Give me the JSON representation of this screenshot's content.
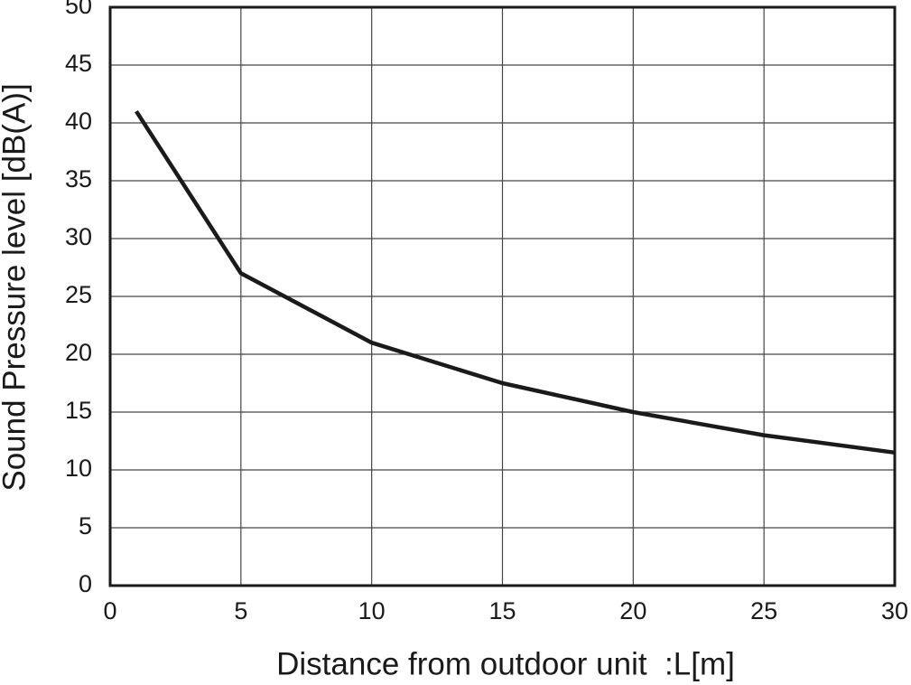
{
  "chart_data": {
    "type": "line",
    "x_label": "Distance from outdoor unit  :L[m]",
    "y_label": "Sound Pressure level [dB(A)]",
    "x": [
      1,
      5,
      10,
      15,
      20,
      25,
      30
    ],
    "series": [
      {
        "color": "#1a1a1a",
        "values": [
          41,
          27,
          21,
          17.5,
          15,
          13,
          11.5
        ]
      }
    ],
    "xlim": [
      0,
      30
    ],
    "xticks": [
      0,
      5,
      10,
      15,
      20,
      25,
      30
    ],
    "ylim": [
      0,
      50
    ],
    "yticks": [
      0,
      5,
      10,
      15,
      20,
      25,
      30,
      35,
      40,
      45,
      50
    ],
    "grid": true
  }
}
